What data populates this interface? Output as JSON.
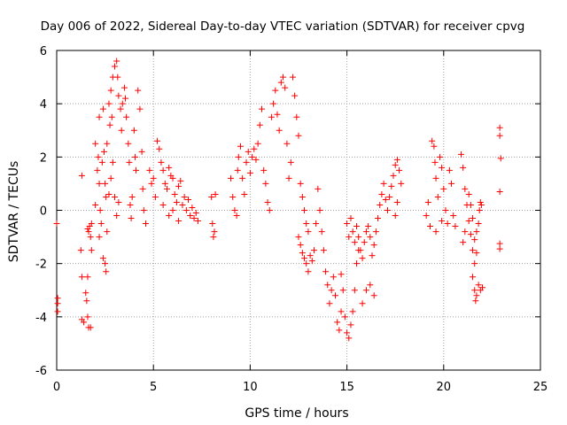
{
  "chart_data": {
    "type": "scatter",
    "title": "Day 006 of 2022, Sidereal Day-to-day VTEC variation (SDTVAR) for receiver cpvg",
    "xlabel": "GPS time / hours",
    "ylabel": "SDTVAR / TECUs",
    "xlim": [
      0,
      25
    ],
    "ylim": [
      -6,
      6
    ],
    "xticks": [
      0,
      5,
      10,
      15,
      20,
      25
    ],
    "yticks": [
      -6,
      -4,
      -2,
      0,
      2,
      4,
      6
    ],
    "grid": true,
    "marker": "+",
    "color": "#ff0000",
    "series": [
      {
        "name": "SDTVAR",
        "points": [
          [
            0.0,
            -0.5
          ],
          [
            0.05,
            -3.3
          ],
          [
            0.05,
            -3.5
          ],
          [
            0.05,
            -3.8
          ],
          [
            1.3,
            1.3
          ],
          [
            1.25,
            -1.5
          ],
          [
            1.3,
            -2.5
          ],
          [
            1.3,
            -4.1
          ],
          [
            1.4,
            -4.2
          ],
          [
            1.5,
            -3.1
          ],
          [
            1.55,
            -3.4
          ],
          [
            1.6,
            -2.5
          ],
          [
            1.6,
            -4.0
          ],
          [
            1.65,
            -4.4
          ],
          [
            1.75,
            -4.4
          ],
          [
            1.6,
            -0.7
          ],
          [
            1.65,
            -0.8
          ],
          [
            1.7,
            -0.6
          ],
          [
            1.75,
            -1.0
          ],
          [
            1.8,
            -0.5
          ],
          [
            1.8,
            -1.5
          ],
          [
            2.0,
            2.5
          ],
          [
            2.1,
            1.5
          ],
          [
            2.15,
            2.0
          ],
          [
            2.2,
            3.5
          ],
          [
            2.2,
            1.0
          ],
          [
            2.25,
            0.0
          ],
          [
            2.3,
            -0.5
          ],
          [
            2.35,
            1.8
          ],
          [
            2.4,
            3.8
          ],
          [
            2.45,
            2.2
          ],
          [
            2.5,
            1.0
          ],
          [
            2.55,
            0.5
          ],
          [
            2.6,
            2.5
          ],
          [
            2.7,
            4.0
          ],
          [
            2.75,
            3.2
          ],
          [
            2.8,
            4.5
          ],
          [
            2.85,
            3.5
          ],
          [
            2.9,
            5.0
          ],
          [
            3.0,
            5.4
          ],
          [
            3.1,
            5.6
          ],
          [
            3.15,
            5.0
          ],
          [
            3.2,
            4.3
          ],
          [
            3.3,
            3.8
          ],
          [
            3.35,
            3.0
          ],
          [
            3.4,
            4.0
          ],
          [
            3.5,
            4.6
          ],
          [
            3.55,
            4.2
          ],
          [
            3.6,
            3.5
          ],
          [
            3.7,
            2.5
          ],
          [
            3.75,
            1.8
          ],
          [
            3.8,
            0.2
          ],
          [
            3.85,
            -0.3
          ],
          [
            3.9,
            0.5
          ],
          [
            4.0,
            3.0
          ],
          [
            4.05,
            2.0
          ],
          [
            4.1,
            1.5
          ],
          [
            4.2,
            4.5
          ],
          [
            4.3,
            3.8
          ],
          [
            4.4,
            2.2
          ],
          [
            4.45,
            0.8
          ],
          [
            4.5,
            0.0
          ],
          [
            4.6,
            -0.5
          ],
          [
            2.0,
            0.2
          ],
          [
            2.2,
            -1.0
          ],
          [
            2.4,
            -1.8
          ],
          [
            2.5,
            -2.0
          ],
          [
            2.55,
            -2.3
          ],
          [
            2.6,
            -0.8
          ],
          [
            2.7,
            0.6
          ],
          [
            2.8,
            1.2
          ],
          [
            2.9,
            1.8
          ],
          [
            3.0,
            0.5
          ],
          [
            3.1,
            -0.2
          ],
          [
            3.2,
            0.3
          ],
          [
            4.8,
            1.5
          ],
          [
            4.9,
            1.0
          ],
          [
            5.0,
            1.2
          ],
          [
            5.1,
            0.5
          ],
          [
            5.2,
            2.6
          ],
          [
            5.3,
            2.3
          ],
          [
            5.4,
            1.8
          ],
          [
            5.5,
            1.5
          ],
          [
            5.6,
            1.0
          ],
          [
            5.7,
            0.8
          ],
          [
            5.8,
            1.6
          ],
          [
            5.9,
            1.3
          ],
          [
            6.0,
            1.2
          ],
          [
            6.1,
            0.6
          ],
          [
            6.2,
            0.3
          ],
          [
            6.3,
            0.9
          ],
          [
            6.4,
            1.1
          ],
          [
            6.5,
            0.2
          ],
          [
            6.6,
            0.5
          ],
          [
            6.7,
            0.0
          ],
          [
            6.8,
            0.4
          ],
          [
            6.9,
            -0.2
          ],
          [
            7.0,
            0.1
          ],
          [
            7.1,
            -0.3
          ],
          [
            7.2,
            -0.1
          ],
          [
            7.3,
            -0.4
          ],
          [
            5.5,
            0.2
          ],
          [
            5.8,
            -0.2
          ],
          [
            6.0,
            0.0
          ],
          [
            6.3,
            -0.4
          ],
          [
            8.0,
            0.5
          ],
          [
            8.05,
            -0.5
          ],
          [
            8.1,
            -1.0
          ],
          [
            8.15,
            -0.8
          ],
          [
            8.2,
            0.6
          ],
          [
            9.0,
            1.2
          ],
          [
            9.1,
            0.5
          ],
          [
            9.2,
            0.0
          ],
          [
            9.3,
            -0.2
          ],
          [
            9.35,
            1.5
          ],
          [
            9.4,
            2.0
          ],
          [
            9.5,
            2.4
          ],
          [
            9.6,
            1.2
          ],
          [
            9.7,
            0.6
          ],
          [
            9.8,
            1.8
          ],
          [
            9.9,
            2.2
          ],
          [
            10.0,
            1.4
          ],
          [
            10.1,
            2.0
          ],
          [
            10.2,
            2.3
          ],
          [
            10.3,
            1.9
          ],
          [
            10.4,
            2.5
          ],
          [
            10.5,
            3.2
          ],
          [
            10.6,
            3.8
          ],
          [
            10.7,
            1.5
          ],
          [
            10.8,
            1.0
          ],
          [
            10.9,
            0.3
          ],
          [
            11.0,
            0.0
          ],
          [
            11.1,
            3.5
          ],
          [
            11.2,
            4.0
          ],
          [
            11.3,
            4.5
          ],
          [
            11.4,
            3.6
          ],
          [
            11.5,
            3.0
          ],
          [
            11.6,
            4.8
          ],
          [
            11.7,
            5.0
          ],
          [
            11.8,
            4.6
          ],
          [
            11.9,
            2.5
          ],
          [
            12.0,
            1.2
          ],
          [
            12.1,
            1.8
          ],
          [
            12.2,
            5.0
          ],
          [
            12.3,
            4.3
          ],
          [
            12.4,
            3.5
          ],
          [
            12.5,
            2.8
          ],
          [
            12.6,
            1.0
          ],
          [
            12.7,
            0.5
          ],
          [
            12.8,
            0.0
          ],
          [
            12.9,
            -0.5
          ],
          [
            13.0,
            -0.8
          ],
          [
            12.5,
            -1.0
          ],
          [
            12.6,
            -1.3
          ],
          [
            12.7,
            -1.6
          ],
          [
            12.8,
            -1.8
          ],
          [
            12.9,
            -2.0
          ],
          [
            13.0,
            -2.3
          ],
          [
            13.1,
            -1.7
          ],
          [
            13.2,
            -1.9
          ],
          [
            13.3,
            -1.5
          ],
          [
            13.4,
            -0.5
          ],
          [
            13.5,
            0.8
          ],
          [
            13.6,
            0.0
          ],
          [
            13.7,
            -0.8
          ],
          [
            13.8,
            -1.5
          ],
          [
            13.9,
            -2.3
          ],
          [
            14.0,
            -2.8
          ],
          [
            14.1,
            -3.5
          ],
          [
            14.2,
            -3.0
          ],
          [
            14.3,
            -2.5
          ],
          [
            14.4,
            -3.2
          ],
          [
            14.5,
            -4.2
          ],
          [
            14.6,
            -4.5
          ],
          [
            14.7,
            -3.8
          ],
          [
            14.8,
            -3.0
          ],
          [
            14.9,
            -4.0
          ],
          [
            15.0,
            -4.6
          ],
          [
            15.1,
            -4.8
          ],
          [
            15.2,
            -4.3
          ],
          [
            15.3,
            -3.8
          ],
          [
            15.4,
            -3.0
          ],
          [
            15.5,
            -2.0
          ],
          [
            15.6,
            -1.5
          ],
          [
            15.0,
            -0.5
          ],
          [
            15.1,
            -1.0
          ],
          [
            15.2,
            -0.3
          ],
          [
            15.3,
            -0.8
          ],
          [
            15.4,
            -1.2
          ],
          [
            15.5,
            -0.6
          ],
          [
            15.6,
            -1.0
          ],
          [
            15.7,
            -1.5
          ],
          [
            15.8,
            -1.8
          ],
          [
            15.9,
            -1.2
          ],
          [
            16.0,
            -0.8
          ],
          [
            16.1,
            -0.6
          ],
          [
            16.2,
            -1.0
          ],
          [
            16.3,
            -1.7
          ],
          [
            16.4,
            -1.3
          ],
          [
            16.5,
            -0.8
          ],
          [
            16.6,
            -0.3
          ],
          [
            16.7,
            0.2
          ],
          [
            16.8,
            0.6
          ],
          [
            16.9,
            1.0
          ],
          [
            17.0,
            0.4
          ],
          [
            17.1,
            0.0
          ],
          [
            17.2,
            0.5
          ],
          [
            17.3,
            0.9
          ],
          [
            17.4,
            1.3
          ],
          [
            17.5,
            1.7
          ],
          [
            17.6,
            1.9
          ],
          [
            17.7,
            1.5
          ],
          [
            17.8,
            1.0
          ],
          [
            17.6,
            0.3
          ],
          [
            17.5,
            -0.2
          ],
          [
            15.8,
            -3.5
          ],
          [
            16.0,
            -3.0
          ],
          [
            16.2,
            -2.8
          ],
          [
            16.4,
            -3.2
          ],
          [
            14.7,
            -2.4
          ],
          [
            19.1,
            -0.2
          ],
          [
            19.2,
            0.3
          ],
          [
            19.3,
            -0.6
          ],
          [
            19.4,
            2.6
          ],
          [
            19.5,
            2.4
          ],
          [
            19.55,
            1.8
          ],
          [
            19.6,
            1.2
          ],
          [
            19.7,
            0.5
          ],
          [
            19.8,
            2.0
          ],
          [
            19.9,
            1.6
          ],
          [
            20.0,
            0.8
          ],
          [
            20.1,
            0.0
          ],
          [
            20.2,
            -0.5
          ],
          [
            19.6,
            -0.8
          ],
          [
            19.9,
            -0.4
          ],
          [
            20.3,
            1.5
          ],
          [
            20.4,
            1.0
          ],
          [
            20.5,
            -0.2
          ],
          [
            20.6,
            -0.6
          ],
          [
            20.9,
            2.1
          ],
          [
            21.0,
            1.6
          ],
          [
            21.1,
            0.8
          ],
          [
            21.2,
            0.2
          ],
          [
            21.3,
            -0.4
          ],
          [
            21.4,
            -0.9
          ],
          [
            21.5,
            -1.5
          ],
          [
            21.6,
            -2.0
          ],
          [
            21.0,
            -1.2
          ],
          [
            21.1,
            -0.8
          ],
          [
            21.3,
            0.6
          ],
          [
            21.4,
            0.2
          ],
          [
            21.5,
            -0.3
          ],
          [
            21.6,
            -1.1
          ],
          [
            21.7,
            -0.8
          ],
          [
            21.8,
            -0.5
          ],
          [
            21.85,
            0.0
          ],
          [
            21.9,
            0.3
          ],
          [
            21.95,
            0.2
          ],
          [
            21.7,
            -1.6
          ],
          [
            21.5,
            -2.5
          ],
          [
            21.6,
            -3.0
          ],
          [
            21.7,
            -3.2
          ],
          [
            21.8,
            -2.8
          ],
          [
            21.9,
            -3.0
          ],
          [
            22.0,
            -2.9
          ],
          [
            21.65,
            -3.4
          ],
          [
            22.9,
            3.1
          ],
          [
            22.9,
            2.8
          ],
          [
            22.95,
            1.95
          ],
          [
            22.9,
            0.7
          ],
          [
            22.9,
            -1.25
          ],
          [
            22.9,
            -1.45
          ]
        ]
      }
    ]
  }
}
